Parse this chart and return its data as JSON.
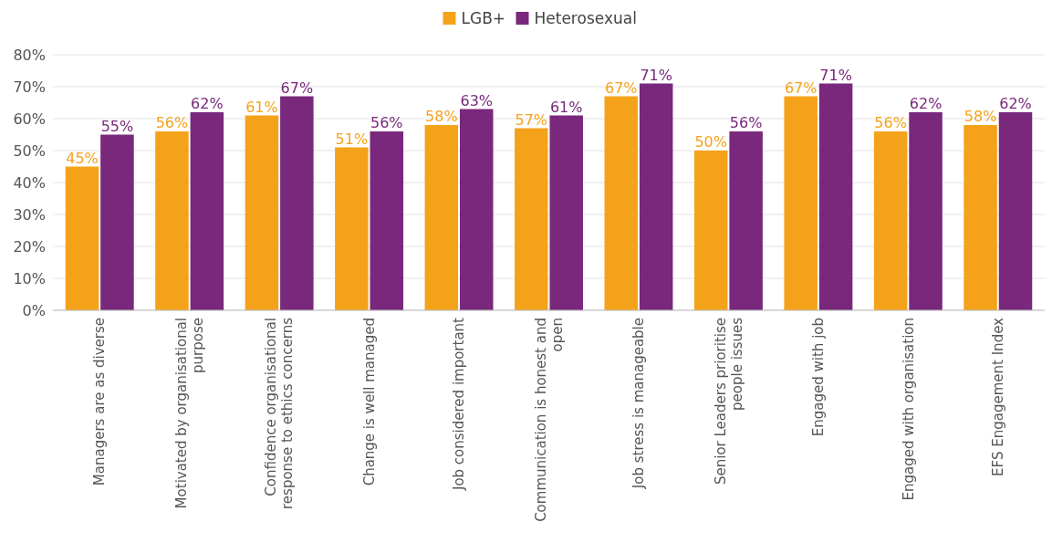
{
  "chart_data": {
    "type": "bar",
    "categories": [
      "Managers are as diverse",
      "Motivated by organisational purpose",
      "Confidence organisational response to ethics concerns",
      "Change is well managed",
      "Job considered important",
      "Communication is honest and open",
      "Job stress is manageable",
      "Senior Leaders prioritise people issues",
      "Engaged with job",
      "Engaged with organisation",
      "EFS Engagement Index"
    ],
    "series": [
      {
        "name": "LGB+",
        "color": "#f5a21b",
        "values": [
          45,
          56,
          61,
          51,
          58,
          57,
          67,
          50,
          67,
          56,
          58
        ],
        "value_labels": [
          "45%",
          "56%",
          "61%",
          "51%",
          "58%",
          "57%",
          "67%",
          "50%",
          "67%",
          "56%",
          "58%"
        ]
      },
      {
        "name": "Heterosexual",
        "color": "#79287c",
        "values": [
          55,
          62,
          67,
          56,
          63,
          61,
          71,
          56,
          71,
          62,
          62
        ],
        "value_labels": [
          "55%",
          "62%",
          "67%",
          "56%",
          "63%",
          "61%",
          "71%",
          "56%",
          "71%",
          "62%",
          "62%"
        ]
      }
    ],
    "ylim": [
      0,
      80
    ],
    "yticks": [
      {
        "value": 0,
        "label": "0%"
      },
      {
        "value": 10,
        "label": "10%"
      },
      {
        "value": 20,
        "label": "20%"
      },
      {
        "value": 30,
        "label": "30%"
      },
      {
        "value": 40,
        "label": "40%"
      },
      {
        "value": 50,
        "label": "50%"
      },
      {
        "value": 60,
        "label": "60%"
      },
      {
        "value": 70,
        "label": "70%"
      },
      {
        "value": 80,
        "label": "80%"
      }
    ],
    "grid": "y",
    "legend": "top"
  }
}
